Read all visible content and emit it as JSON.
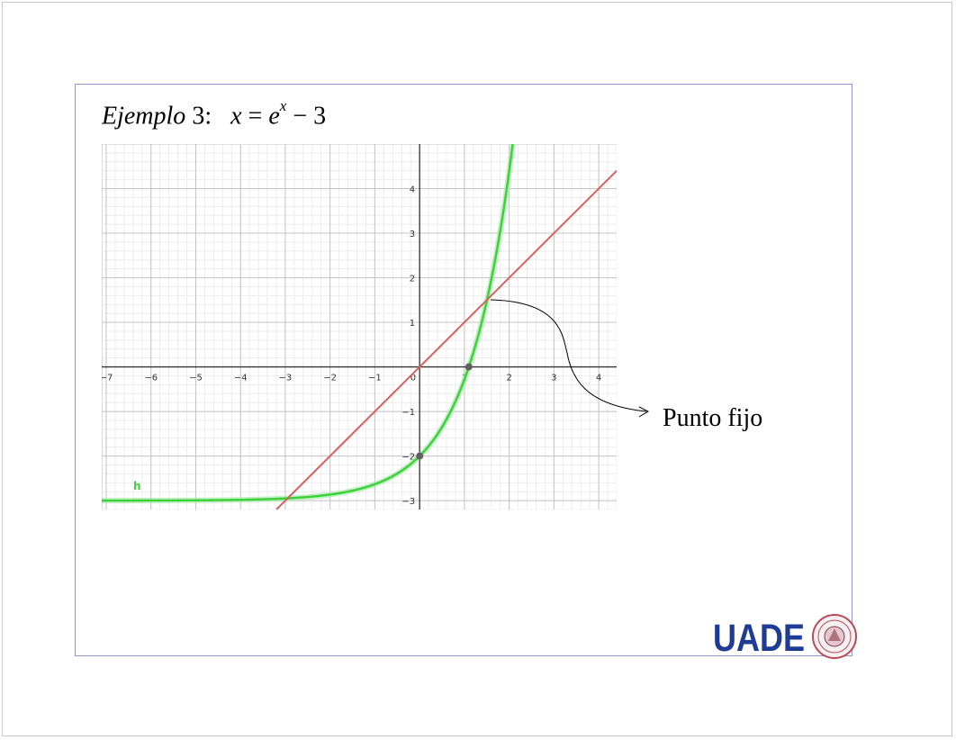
{
  "slide": {
    "title_word": "Ejemplo",
    "title_num": "3",
    "title_colon": ":",
    "eq_lhs": "x",
    "eq_op": "=",
    "eq_base": "e",
    "eq_exp": "x",
    "eq_minus": "−",
    "eq_const": "3"
  },
  "callout": {
    "label": "Punto fijo"
  },
  "logo": {
    "text": "UADE",
    "color": "#1f3c94",
    "seal_color": "#b84a5a"
  },
  "chart_data": {
    "type": "line",
    "xlim": [
      -7.1,
      4.4
    ],
    "ylim": [
      -3.2,
      5.0
    ],
    "grid": true,
    "x_ticks": [
      -7,
      -6,
      -5,
      -4,
      -3,
      -2,
      -1,
      0,
      1,
      2,
      3,
      4
    ],
    "y_ticks": [
      -3,
      -2,
      -1,
      1,
      2,
      3,
      4
    ],
    "x_tick_labels": [
      "−7",
      "−6",
      "−5",
      "−4",
      "−3",
      "−2",
      "−1",
      "0",
      "1",
      "2",
      "3",
      "4"
    ],
    "y_tick_labels": [
      "−3",
      "−2",
      "−1",
      "1",
      "2",
      "3",
      "4"
    ],
    "series": [
      {
        "name": "h",
        "function": "e^x - 3",
        "color": "#3ad13a"
      },
      {
        "function": "x",
        "color": "#d9605f"
      }
    ],
    "points": [
      {
        "x": 0,
        "y": -2
      },
      {
        "x": 1.0986,
        "y": 0
      }
    ],
    "fixed_point": {
      "x": 1.5052,
      "y": 1.5052
    }
  }
}
